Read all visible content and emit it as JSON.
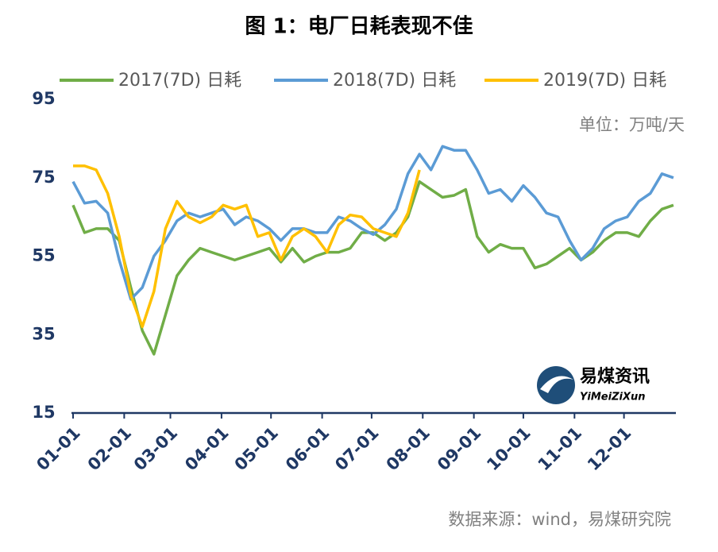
{
  "chart_data": {
    "type": "line",
    "title": "图 1：电厂日耗表现不佳",
    "unit": "单位：万吨/天",
    "source": "数据来源：wind，易煤研究院",
    "logo": {
      "name": "易煤资讯",
      "subtitle": "YiMeiZiXun"
    },
    "x": [
      1,
      8,
      15,
      22,
      29,
      36,
      43,
      50,
      57,
      64,
      71,
      78,
      85,
      92,
      99,
      106,
      113,
      120,
      127,
      134,
      141,
      148,
      155,
      162,
      169,
      176,
      183,
      190,
      197,
      204,
      211,
      218,
      225,
      232,
      239,
      246,
      253,
      260,
      267,
      274,
      281,
      288,
      295,
      302,
      309,
      316,
      323,
      330,
      337,
      344,
      351,
      358,
      365
    ],
    "xlim": [
      1,
      366
    ],
    "xticks": [
      {
        "value": 1,
        "label": "01-01"
      },
      {
        "value": 32,
        "label": "02-01"
      },
      {
        "value": 60,
        "label": "03-01"
      },
      {
        "value": 91,
        "label": "04-01"
      },
      {
        "value": 121,
        "label": "05-01"
      },
      {
        "value": 152,
        "label": "06-01"
      },
      {
        "value": 182,
        "label": "07-01"
      },
      {
        "value": 213,
        "label": "08-01"
      },
      {
        "value": 244,
        "label": "09-01"
      },
      {
        "value": 274,
        "label": "10-01"
      },
      {
        "value": 305,
        "label": "11-01"
      },
      {
        "value": 335,
        "label": "12-01"
      }
    ],
    "ylim": [
      15,
      95
    ],
    "yticks": [
      15,
      35,
      55,
      75,
      95
    ],
    "grid": false,
    "series": [
      {
        "name": "2017(7D) 日耗",
        "color": "#70ad47",
        "values": [
          68,
          61,
          62,
          62,
          59,
          47,
          36,
          30,
          40,
          50,
          54,
          57,
          56,
          55,
          54,
          55,
          56,
          57,
          53.5,
          57,
          53.5,
          55,
          56,
          56,
          57,
          61,
          61,
          59,
          61,
          65,
          74,
          72,
          70,
          70.5,
          72,
          60,
          56,
          58,
          57,
          57,
          52,
          53,
          55,
          57,
          54,
          56,
          59,
          61,
          61,
          60,
          64,
          67,
          68
        ]
      },
      {
        "name": "2018(7D) 日耗",
        "color": "#5b9bd5",
        "values": [
          74,
          68.5,
          69,
          66,
          54,
          44,
          47,
          55,
          59,
          64,
          66,
          65,
          66,
          67,
          63,
          65,
          64,
          62,
          59,
          62,
          62,
          61,
          61,
          65,
          64,
          62,
          60.5,
          63,
          67,
          76,
          81,
          77,
          83,
          82,
          82,
          77,
          71,
          72,
          69,
          73,
          70,
          66,
          65,
          59,
          54,
          57,
          62,
          64,
          65,
          69,
          71,
          76,
          75
        ]
      },
      {
        "name": "2019(7D) 日耗",
        "color": "#ffc000",
        "values": [
          78,
          78,
          77,
          71,
          60,
          45,
          37,
          46,
          62,
          69,
          65,
          63.5,
          65,
          68,
          67,
          68,
          60,
          61,
          54,
          60,
          62,
          60,
          56,
          63,
          65.5,
          65,
          62,
          61,
          60,
          66,
          77,
          null,
          null,
          null,
          null,
          null,
          null,
          null,
          null,
          null,
          null,
          null,
          null,
          null,
          null,
          null,
          null,
          null,
          null,
          null,
          null,
          null,
          null
        ]
      }
    ]
  }
}
